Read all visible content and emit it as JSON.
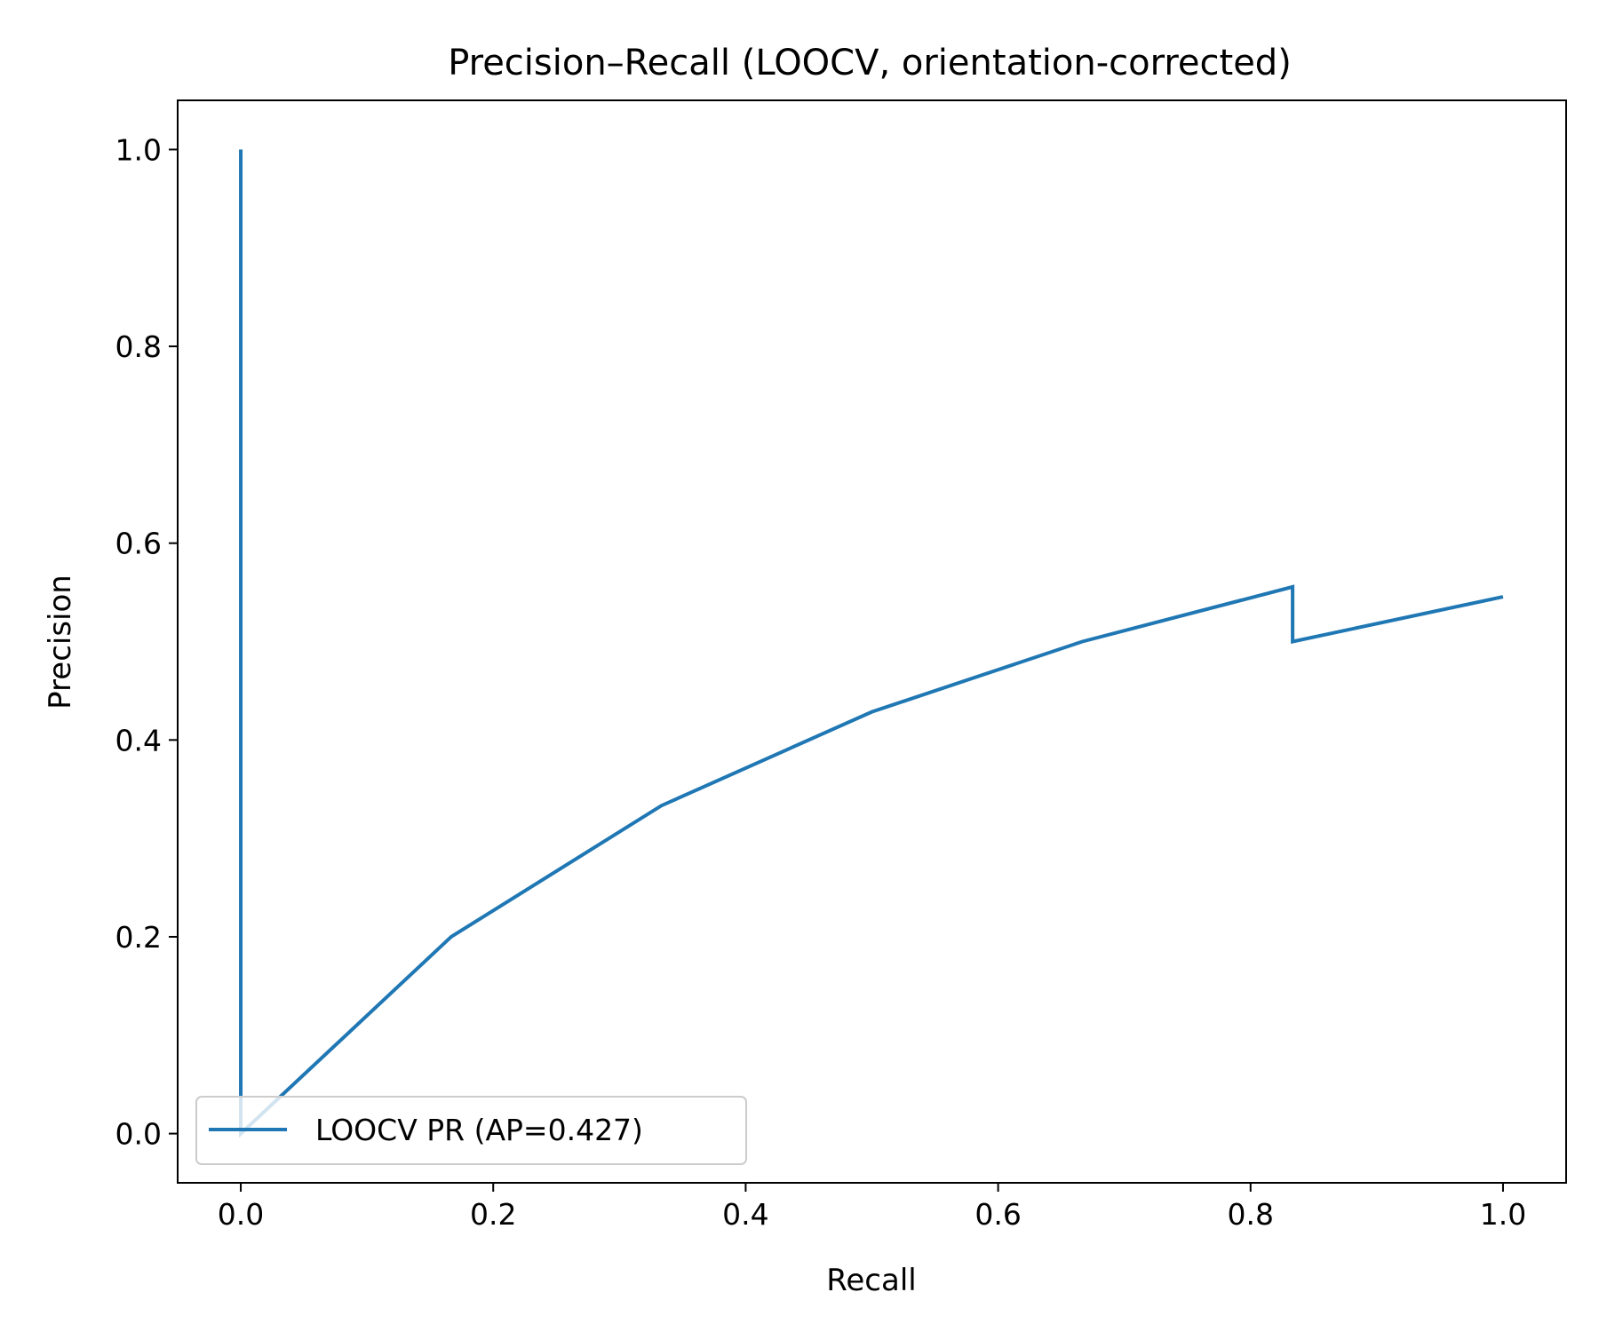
{
  "chart_data": {
    "type": "line",
    "title": "Precision–Recall (LOOCV, orientation-corrected)",
    "xlabel": "Recall",
    "ylabel": "Precision",
    "xlim": [
      -0.05,
      1.05
    ],
    "ylim": [
      -0.05,
      1.05
    ],
    "xticks": [
      0.0,
      0.2,
      0.4,
      0.6,
      0.8,
      1.0
    ],
    "yticks": [
      0.0,
      0.2,
      0.4,
      0.6,
      0.8,
      1.0
    ],
    "xtick_labels": [
      "0.0",
      "0.2",
      "0.4",
      "0.6",
      "0.8",
      "1.0"
    ],
    "ytick_labels": [
      "0.0",
      "0.2",
      "0.4",
      "0.6",
      "0.8",
      "1.0"
    ],
    "grid": false,
    "legend_position": "lower left",
    "series": [
      {
        "name": "LOOCV PR (AP=0.427)",
        "color": "#1f77b4",
        "x": [
          0.0,
          0.0,
          0.1667,
          0.3333,
          0.5,
          0.6667,
          0.8333,
          0.8333,
          1.0
        ],
        "y": [
          1.0,
          0.0,
          0.2,
          0.3333,
          0.4286,
          0.5,
          0.5556,
          0.5,
          0.5455
        ]
      }
    ]
  }
}
